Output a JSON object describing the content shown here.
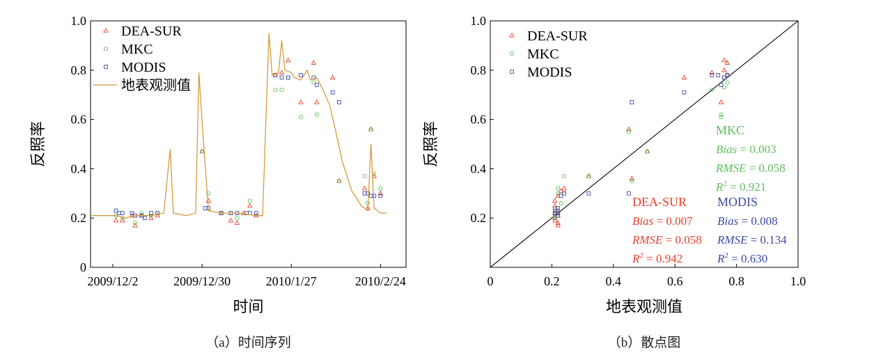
{
  "colors": {
    "dea": "#e8402a",
    "mkc": "#5cc05a",
    "modis": "#3c4aa8",
    "ground": "#d49a3a",
    "axis": "#000000"
  },
  "chart_data": [
    {
      "panel": "a",
      "type": "scatter",
      "caption": "（a）时间序列",
      "xlabel": "时间",
      "ylabel": "反照率",
      "x_tick_labels": [
        "2009/12/2",
        "2009/12/30",
        "2010/1/27",
        "2010/2/24"
      ],
      "x_ticks": [
        "2009-12-02",
        "2009-12-30",
        "2010-01-27",
        "2010-02-24"
      ],
      "xlim": [
        "2009-11-25",
        "2010-03-04"
      ],
      "ylim": [
        0,
        1
      ],
      "y_ticks": [
        0,
        0.2,
        0.4,
        0.6,
        0.8,
        1.0
      ],
      "y_tick_labels": [
        "0",
        "0.2",
        "0.4",
        "0.6",
        "0.8",
        "1.0"
      ],
      "legend_position": "top-left",
      "series": [
        {
          "name": "DEA-SUR",
          "marker": "triangle",
          "points": [
            [
              "2009-12-03",
              0.19
            ],
            [
              "2009-12-05",
              0.19
            ],
            [
              "2009-12-08",
              0.21
            ],
            [
              "2009-12-09",
              0.17
            ],
            [
              "2009-12-11",
              0.21
            ],
            [
              "2009-12-14",
              0.2
            ],
            [
              "2009-12-16",
              0.21
            ],
            [
              "2009-12-30",
              0.47
            ],
            [
              "2010-01-01",
              0.27
            ],
            [
              "2010-01-05",
              0.22
            ],
            [
              "2010-01-08",
              0.19
            ],
            [
              "2010-01-10",
              0.18
            ],
            [
              "2010-01-12",
              0.22
            ],
            [
              "2010-01-14",
              0.25
            ],
            [
              "2010-01-16",
              0.21
            ],
            [
              "2010-01-22",
              0.78
            ],
            [
              "2010-01-24",
              0.79
            ],
            [
              "2010-01-26",
              0.84
            ],
            [
              "2010-01-30",
              0.67
            ],
            [
              "2010-02-04",
              0.67
            ],
            [
              "2010-02-03",
              0.83
            ],
            [
              "2010-02-09",
              0.77
            ],
            [
              "2010-02-11",
              0.35
            ],
            [
              "2010-02-19",
              0.32
            ],
            [
              "2010-02-20",
              0.24
            ],
            [
              "2010-02-21",
              0.56
            ],
            [
              "2010-02-22",
              0.37
            ],
            [
              "2010-02-24",
              0.3
            ]
          ]
        },
        {
          "name": "MKC",
          "marker": "circle",
          "points": [
            [
              "2009-12-03",
              0.21
            ],
            [
              "2009-12-05",
              0.2
            ],
            [
              "2009-12-09",
              0.18
            ],
            [
              "2009-12-11",
              0.22
            ],
            [
              "2009-12-14",
              0.21
            ],
            [
              "2009-12-16",
              0.22
            ],
            [
              "2009-12-30",
              0.47
            ],
            [
              "2010-01-01",
              0.3
            ],
            [
              "2010-01-05",
              0.22
            ],
            [
              "2010-01-08",
              0.22
            ],
            [
              "2010-01-10",
              0.2
            ],
            [
              "2010-01-14",
              0.27
            ],
            [
              "2010-01-22",
              0.72
            ],
            [
              "2010-01-24",
              0.72
            ],
            [
              "2010-01-26",
              0.77
            ],
            [
              "2010-01-30",
              0.61
            ],
            [
              "2010-02-03",
              0.75
            ],
            [
              "2010-02-04",
              0.62
            ],
            [
              "2010-02-11",
              0.35
            ],
            [
              "2010-02-19",
              0.37
            ],
            [
              "2010-02-20",
              0.26
            ],
            [
              "2010-02-21",
              0.56
            ],
            [
              "2010-02-22",
              0.38
            ],
            [
              "2010-02-24",
              0.32
            ]
          ]
        },
        {
          "name": "MODIS",
          "marker": "square",
          "points": [
            [
              "2009-12-03",
              0.23
            ],
            [
              "2009-12-04",
              0.22
            ],
            [
              "2009-12-05",
              0.22
            ],
            [
              "2009-12-08",
              0.22
            ],
            [
              "2009-12-09",
              0.21
            ],
            [
              "2009-12-11",
              0.21
            ],
            [
              "2009-12-12",
              0.2
            ],
            [
              "2009-12-14",
              0.22
            ],
            [
              "2009-12-16",
              0.22
            ],
            [
              "2009-12-31",
              0.24
            ],
            [
              "2010-01-01",
              0.24
            ],
            [
              "2010-01-05",
              0.22
            ],
            [
              "2010-01-08",
              0.22
            ],
            [
              "2010-01-10",
              0.22
            ],
            [
              "2010-01-13",
              0.22
            ],
            [
              "2010-01-14",
              0.22
            ],
            [
              "2010-01-16",
              0.22
            ],
            [
              "2010-01-22",
              0.78
            ],
            [
              "2010-01-24",
              0.77
            ],
            [
              "2010-01-26",
              0.77
            ],
            [
              "2010-01-30",
              0.78
            ],
            [
              "2010-02-03",
              0.77
            ],
            [
              "2010-02-04",
              0.74
            ],
            [
              "2010-02-09",
              0.71
            ],
            [
              "2010-02-11",
              0.67
            ],
            [
              "2010-02-19",
              0.3
            ],
            [
              "2010-02-20",
              0.3
            ],
            [
              "2010-02-21",
              0.29
            ],
            [
              "2010-02-22",
              0.29
            ],
            [
              "2010-02-24",
              0.29
            ]
          ]
        },
        {
          "name": "地表观测值",
          "marker": "line",
          "points": [
            [
              "2009-11-25",
              0.21
            ],
            [
              "2009-12-03",
              0.21
            ],
            [
              "2009-12-06",
              0.2
            ],
            [
              "2009-12-09",
              0.21
            ],
            [
              "2009-12-14",
              0.21
            ],
            [
              "2009-12-18",
              0.22
            ],
            [
              "2009-12-20",
              0.48
            ],
            [
              "2009-12-21",
              0.22
            ],
            [
              "2009-12-25",
              0.21
            ],
            [
              "2009-12-28",
              0.22
            ],
            [
              "2009-12-29",
              0.79
            ],
            [
              "2009-12-30",
              0.59
            ],
            [
              "2010-01-01",
              0.23
            ],
            [
              "2010-01-05",
              0.22
            ],
            [
              "2010-01-10",
              0.22
            ],
            [
              "2010-01-16",
              0.21
            ],
            [
              "2010-01-18",
              0.21
            ],
            [
              "2010-01-20",
              0.95
            ],
            [
              "2010-01-21",
              0.78
            ],
            [
              "2010-01-23",
              0.79
            ],
            [
              "2010-01-24",
              0.92
            ],
            [
              "2010-01-25",
              0.8
            ],
            [
              "2010-01-27",
              0.79
            ],
            [
              "2010-01-28",
              0.77
            ],
            [
              "2010-01-30",
              0.76
            ],
            [
              "2010-02-01",
              0.8
            ],
            [
              "2010-02-02",
              0.76
            ],
            [
              "2010-02-04",
              0.77
            ],
            [
              "2010-02-06",
              0.72
            ],
            [
              "2010-02-08",
              0.66
            ],
            [
              "2010-02-10",
              0.55
            ],
            [
              "2010-02-12",
              0.43
            ],
            [
              "2010-02-15",
              0.31
            ],
            [
              "2010-02-18",
              0.25
            ],
            [
              "2010-02-20",
              0.23
            ],
            [
              "2010-02-21",
              0.5
            ],
            [
              "2010-02-22",
              0.24
            ],
            [
              "2010-02-24",
              0.22
            ],
            [
              "2010-02-26",
              0.22
            ]
          ]
        }
      ]
    },
    {
      "panel": "b",
      "type": "scatter",
      "caption": "（b）散点图",
      "xlabel": "地表观测值",
      "ylabel": "反照率",
      "xlim": [
        0,
        1
      ],
      "ylim": [
        0,
        1
      ],
      "x_ticks": [
        0,
        0.2,
        0.4,
        0.6,
        0.8,
        1.0
      ],
      "x_tick_labels": [
        "0",
        "0.2",
        "0.4",
        "0.6",
        "0.8",
        "1.0"
      ],
      "y_ticks": [
        0.2,
        0.4,
        0.6,
        0.8,
        1.0
      ],
      "y_tick_labels": [
        "0.2",
        "0.4",
        "0.6",
        "0.8",
        "1.0"
      ],
      "one_to_one_line": true,
      "legend_position": "top-left",
      "series": [
        {
          "name": "DEA-SUR",
          "marker": "triangle",
          "points": [
            [
              0.21,
              0.19
            ],
            [
              0.21,
              0.2
            ],
            [
              0.21,
              0.22
            ],
            [
              0.21,
              0.25
            ],
            [
              0.21,
              0.27
            ],
            [
              0.22,
              0.21
            ],
            [
              0.22,
              0.18
            ],
            [
              0.22,
              0.17
            ],
            [
              0.22,
              0.29
            ],
            [
              0.23,
              0.31
            ],
            [
              0.24,
              0.32
            ],
            [
              0.22,
              0.23
            ],
            [
              0.32,
              0.37
            ],
            [
              0.45,
              0.56
            ],
            [
              0.46,
              0.36
            ],
            [
              0.51,
              0.47
            ],
            [
              0.63,
              0.77
            ],
            [
              0.72,
              0.79
            ],
            [
              0.76,
              0.84
            ],
            [
              0.77,
              0.83
            ],
            [
              0.76,
              0.8
            ],
            [
              0.77,
              0.78
            ],
            [
              0.75,
              0.67
            ]
          ]
        },
        {
          "name": "MKC",
          "marker": "circle",
          "points": [
            [
              0.21,
              0.21
            ],
            [
              0.21,
              0.24
            ],
            [
              0.22,
              0.3
            ],
            [
              0.22,
              0.32
            ],
            [
              0.23,
              0.26
            ],
            [
              0.24,
              0.37
            ],
            [
              0.22,
              0.22
            ],
            [
              0.21,
              0.2
            ],
            [
              0.32,
              0.37
            ],
            [
              0.45,
              0.55
            ],
            [
              0.46,
              0.35
            ],
            [
              0.51,
              0.47
            ],
            [
              0.72,
              0.72
            ],
            [
              0.75,
              0.61
            ],
            [
              0.75,
              0.62
            ],
            [
              0.76,
              0.73
            ],
            [
              0.77,
              0.75
            ],
            [
              0.76,
              0.77
            ]
          ]
        },
        {
          "name": "MODIS",
          "marker": "square",
          "points": [
            [
              0.21,
              0.22
            ],
            [
              0.21,
              0.23
            ],
            [
              0.22,
              0.22
            ],
            [
              0.22,
              0.21
            ],
            [
              0.22,
              0.24
            ],
            [
              0.23,
              0.29
            ],
            [
              0.24,
              0.3
            ],
            [
              0.32,
              0.3
            ],
            [
              0.45,
              0.3
            ],
            [
              0.46,
              0.67
            ],
            [
              0.63,
              0.71
            ],
            [
              0.72,
              0.78
            ],
            [
              0.74,
              0.78
            ],
            [
              0.75,
              0.74
            ],
            [
              0.76,
              0.77
            ],
            [
              0.77,
              0.78
            ]
          ]
        }
      ],
      "annotations": [
        {
          "series": "DEA-SUR",
          "name": "DEA-SUR",
          "bias": "0.007",
          "rmse": "0.058",
          "r2": "0.942"
        },
        {
          "series": "MKC",
          "name": "MKC",
          "bias": "0.003",
          "rmse": "0.058",
          "r2": "0.921"
        },
        {
          "series": "MODIS",
          "name": "MODIS",
          "bias": "0.008",
          "rmse": "0.134",
          "r2": "0.630"
        }
      ]
    }
  ]
}
